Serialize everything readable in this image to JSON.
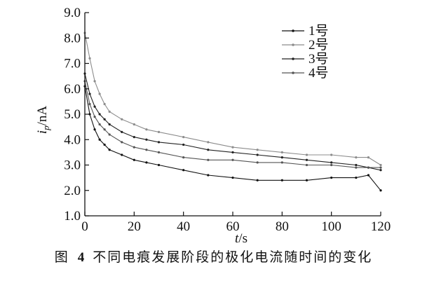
{
  "chart_data": {
    "type": "line",
    "title": "",
    "xlabel_var": "t",
    "xlabel_unit": "/s",
    "ylabel_var": "i",
    "ylabel_sub": "p",
    "ylabel_unit": "/nA",
    "xlim": [
      0,
      120
    ],
    "ylim": [
      1.0,
      9.0
    ],
    "xticks": [
      "0",
      "20",
      "40",
      "60",
      "80",
      "100",
      "120"
    ],
    "yticks": [
      "1.0",
      "2.0",
      "3.0",
      "4.0",
      "5.0",
      "6.0",
      "7.0",
      "8.0",
      "9.0"
    ],
    "legend_position": "top-right",
    "series": [
      {
        "name": "1号",
        "color": "#111111",
        "marker": "dot",
        "x": [
          0,
          2,
          4,
          6,
          8,
          10,
          15,
          20,
          25,
          30,
          40,
          50,
          60,
          70,
          80,
          90,
          100,
          110,
          115,
          120
        ],
        "values": [
          6.1,
          5.0,
          4.4,
          4.0,
          3.8,
          3.6,
          3.4,
          3.2,
          3.1,
          3.0,
          2.8,
          2.6,
          2.5,
          2.4,
          2.4,
          2.4,
          2.5,
          2.5,
          2.6,
          2.0
        ]
      },
      {
        "name": "2号",
        "color": "#8c8c8c",
        "marker": "plus",
        "x": [
          0,
          2,
          4,
          6,
          8,
          10,
          15,
          20,
          25,
          30,
          40,
          50,
          60,
          70,
          80,
          90,
          100,
          110,
          115,
          120
        ],
        "values": [
          8.2,
          7.2,
          6.3,
          5.8,
          5.4,
          5.1,
          4.8,
          4.6,
          4.4,
          4.3,
          4.1,
          3.9,
          3.7,
          3.6,
          3.5,
          3.4,
          3.4,
          3.3,
          3.3,
          3.0
        ]
      },
      {
        "name": "3号",
        "color": "#222222",
        "marker": "tri",
        "x": [
          0,
          2,
          4,
          6,
          8,
          10,
          15,
          20,
          25,
          30,
          40,
          50,
          60,
          70,
          80,
          90,
          100,
          110,
          115,
          120
        ],
        "values": [
          6.6,
          5.8,
          5.3,
          5.0,
          4.8,
          4.6,
          4.3,
          4.1,
          4.0,
          3.9,
          3.8,
          3.6,
          3.5,
          3.4,
          3.3,
          3.2,
          3.1,
          3.0,
          2.9,
          2.8
        ]
      },
      {
        "name": "4号",
        "color": "#555555",
        "marker": "x",
        "x": [
          0,
          2,
          4,
          6,
          8,
          10,
          15,
          20,
          25,
          30,
          40,
          50,
          60,
          70,
          80,
          90,
          100,
          110,
          115,
          120
        ],
        "values": [
          6.3,
          5.4,
          4.9,
          4.6,
          4.4,
          4.2,
          3.9,
          3.7,
          3.6,
          3.5,
          3.3,
          3.2,
          3.2,
          3.1,
          3.1,
          3.0,
          3.0,
          2.9,
          2.9,
          2.9
        ]
      }
    ]
  },
  "caption": {
    "prefix": "图",
    "number": "4",
    "text": "不同电痕发展阶段的极化电流随时间的变化"
  }
}
